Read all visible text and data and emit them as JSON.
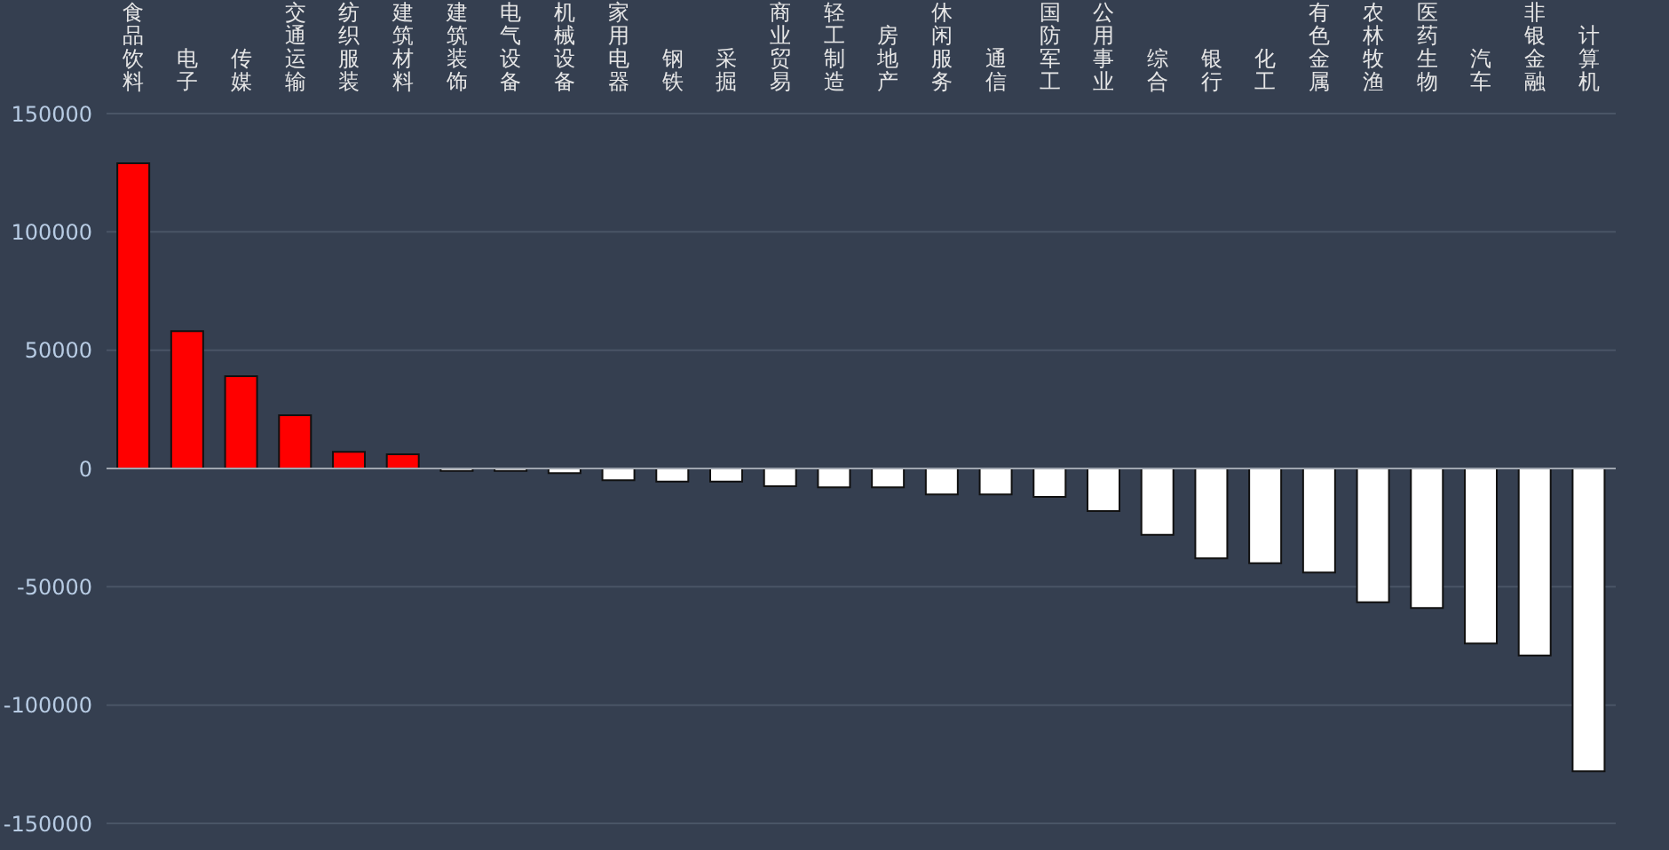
{
  "chart_data": {
    "type": "bar",
    "categories": [
      "食品饮料",
      "电子",
      "传媒",
      "交通运输",
      "纺织服装",
      "建筑材料",
      "建筑装饰",
      "电气设备",
      "机械设备",
      "家用电器",
      "钢铁",
      "采掘",
      "商业贸易",
      "轻工制造",
      "房地产",
      "休闲服务",
      "通信",
      "国防军工",
      "公用事业",
      "综合",
      "银行",
      "化工",
      "有色金属",
      "农林牧渔",
      "医药生物",
      "汽车",
      "非银金融",
      "计算机"
    ],
    "values": [
      129000,
      58000,
      39000,
      22500,
      7000,
      6000,
      -1000,
      -1000,
      -2000,
      -5000,
      -5500,
      -5500,
      -7500,
      -8000,
      -8000,
      -11000,
      -11000,
      -12000,
      -18000,
      -28000,
      -38000,
      -40000,
      -44000,
      -56500,
      -59000,
      -74000,
      -79000,
      -128000
    ],
    "colors": [
      "#ff0000",
      "#ff0000",
      "#ff0000",
      "#ff0000",
      "#ff0000",
      "#ff0000",
      "#ffffff",
      "#ffffff",
      "#ffffff",
      "#ffffff",
      "#ffffff",
      "#ffffff",
      "#ffffff",
      "#ffffff",
      "#ffffff",
      "#ffffff",
      "#ffffff",
      "#ffffff",
      "#ffffff",
      "#ffffff",
      "#ffffff",
      "#ffffff",
      "#ffffff",
      "#ffffff",
      "#ffffff",
      "#ffffff",
      "#ffffff",
      "#ffffff"
    ],
    "ylim": [
      -150000,
      150000
    ],
    "yticks": [
      -150000,
      -100000,
      -50000,
      0,
      50000,
      100000,
      150000
    ],
    "grid": "y",
    "ref_lines": [
      {
        "axis": "y",
        "value": 0,
        "color": "#a0a6b0"
      }
    ]
  }
}
